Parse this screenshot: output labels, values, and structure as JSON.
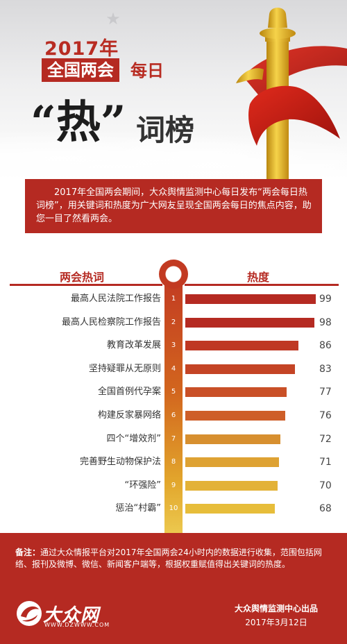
{
  "header": {
    "year_title": "2017年",
    "title_box": "全国两会",
    "title_daily": "每日",
    "hot_word": "“热”",
    "hot_rest": "词榜"
  },
  "intro": {
    "text": "2017年全国两会期间，大众舆情监测中心每日发布“两会每日热词榜”，用关键词和热度为广大网友呈现全国两会每日的焦点内容，助您一目了然看两会。"
  },
  "colors": {
    "brand_red": "#b52a22",
    "bar_ramp": [
      "#b52a22",
      "#b52a22",
      "#bf3823",
      "#c44425",
      "#c95027",
      "#ce5e28",
      "#d78f2f",
      "#dea233",
      "#e3b237",
      "#e7bd3a"
    ]
  },
  "chart_data": {
    "type": "bar",
    "orientation": "horizontal",
    "category_header": "两会热词",
    "value_header": "热度",
    "categories": [
      "最高人民法院工作报告",
      "最高人民检察院工作报告",
      "教育改革发展",
      "坚持疑罪从无原则",
      "全国首例代孕案",
      "构建反家暴网络",
      "四个“增效剂”",
      "完善野生动物保护法",
      "“环强险”",
      "惩治“村霸”"
    ],
    "ranks": [
      "1",
      "2",
      "3",
      "4",
      "5",
      "6",
      "7",
      "8",
      "9",
      "10"
    ],
    "values": [
      99,
      98,
      86,
      83,
      77,
      76,
      72,
      71,
      70,
      68
    ],
    "xlim": [
      0,
      100
    ],
    "grid": false,
    "legend": "none"
  },
  "footer": {
    "note_label": "备注：",
    "note_text": "通过大众情报平台对2017年全国两会24小时内的数据进行收集，范围包括网络、报刊及微博、微信、新闻客户端等，根据权重赋值得出关键词的热度。",
    "logo_text": "大众网",
    "logo_url": "WWW.DZWWW.COM",
    "publisher": "大众舆情监测中心出品",
    "date": "2017年3月12日"
  }
}
